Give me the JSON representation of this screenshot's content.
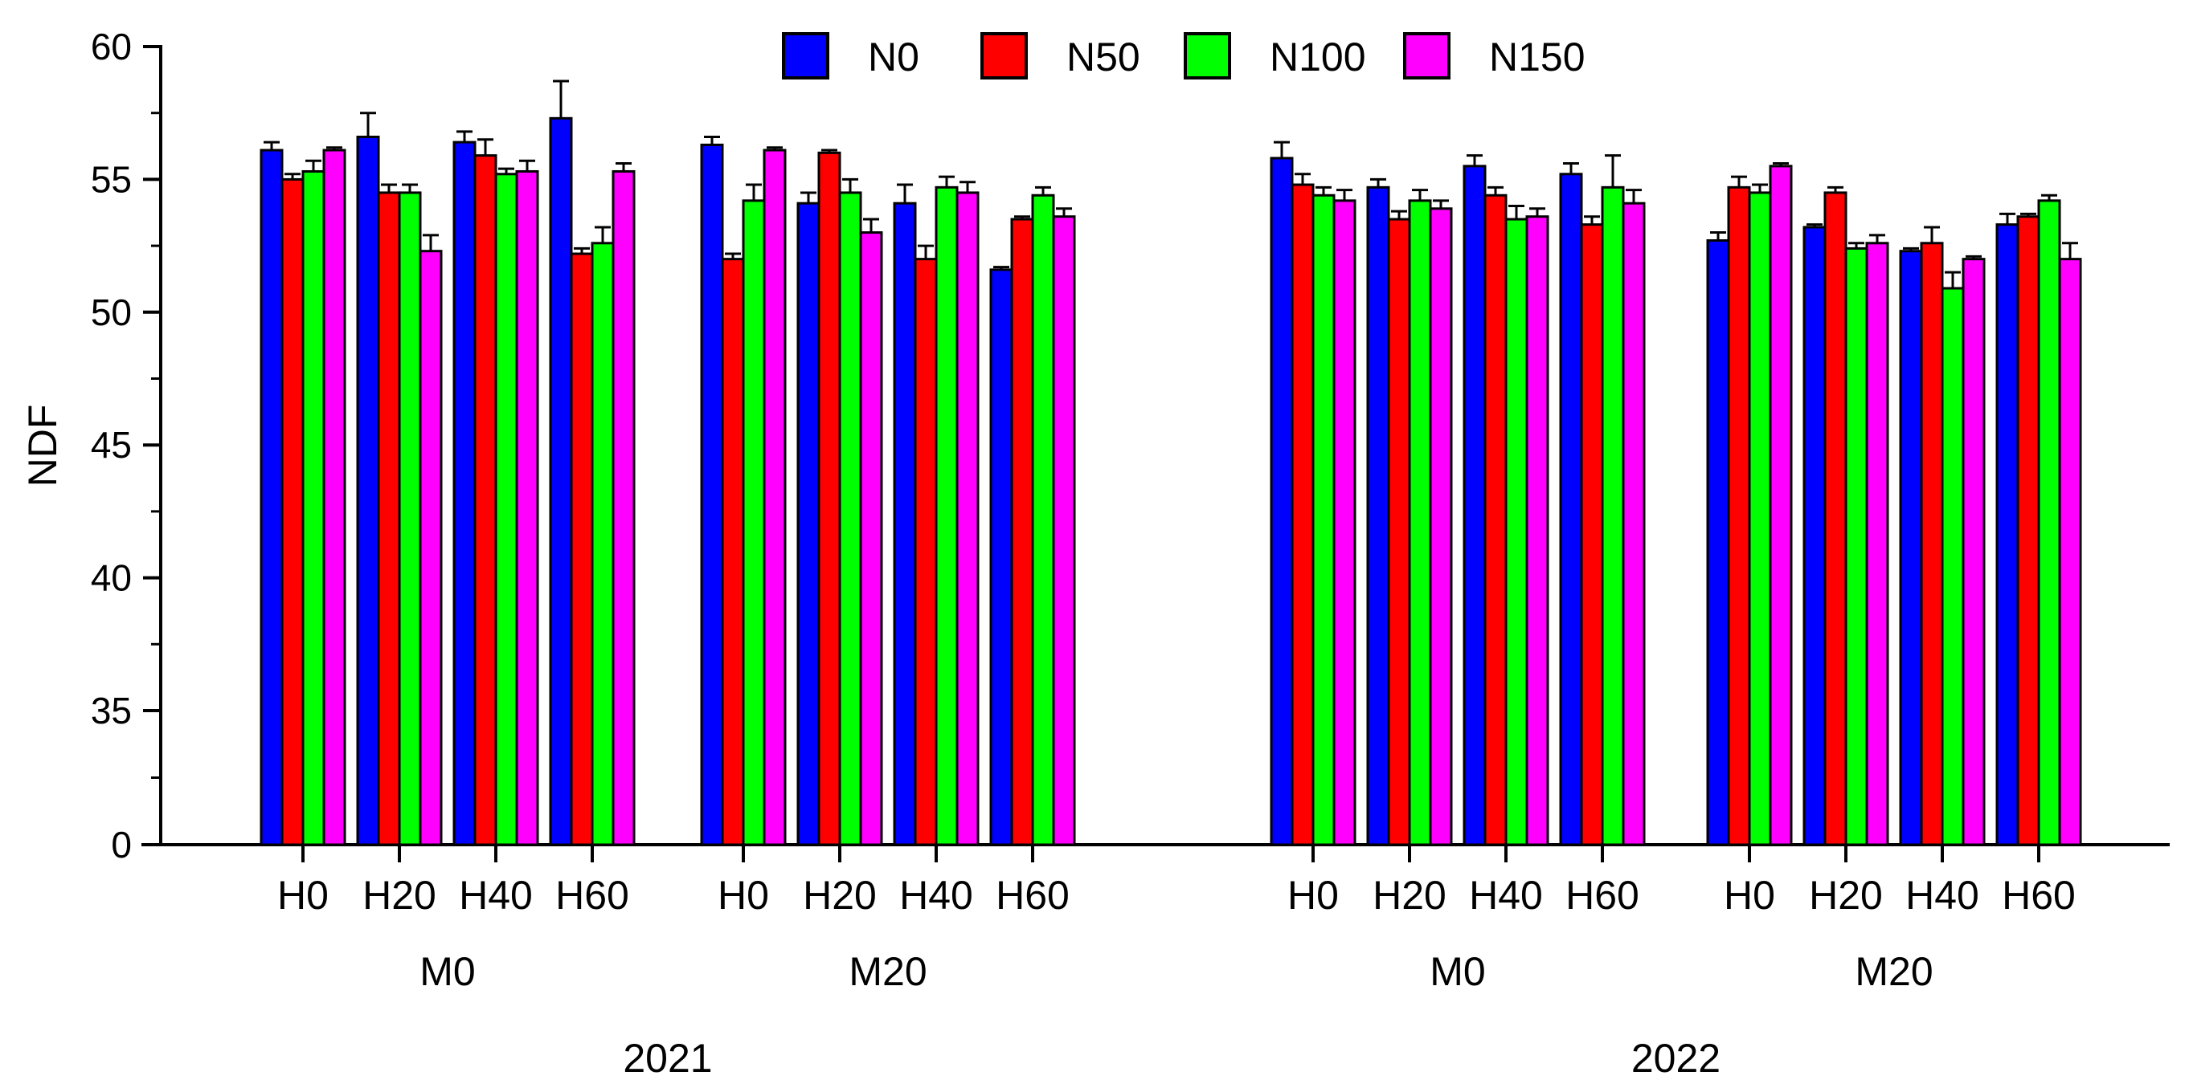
{
  "chart_data": {
    "type": "bar",
    "ylabel": "NDF",
    "y_axis_break": true,
    "y_ticks": [
      0,
      35,
      40,
      45,
      50,
      55,
      60
    ],
    "y_tick_labels": [
      "0",
      "35",
      "40",
      "45",
      "50",
      "55",
      "60"
    ],
    "ylim": [
      32,
      60
    ],
    "grid": false,
    "legend_position": "top-center",
    "legend": [
      "N0",
      "N50",
      "N100",
      "N150"
    ],
    "series": [
      {
        "name": "N0",
        "color": "#0000FF"
      },
      {
        "name": "N50",
        "color": "#FF0000"
      },
      {
        "name": "N100",
        "color": "#00FF00"
      },
      {
        "name": "N150",
        "color": "#FF00FF"
      }
    ],
    "years": [
      {
        "label": "2021",
        "groups": [
          {
            "label": "M0",
            "clusters": [
              {
                "label": "H0",
                "values": [
                  56.1,
                  55.0,
                  55.3,
                  56.1
                ],
                "errors": [
                  0.3,
                  0.2,
                  0.4,
                  0.1
                ]
              },
              {
                "label": "H20",
                "values": [
                  56.6,
                  54.5,
                  54.5,
                  52.3
                ],
                "errors": [
                  0.9,
                  0.3,
                  0.3,
                  0.6
                ]
              },
              {
                "label": "H40",
                "values": [
                  56.4,
                  55.9,
                  55.2,
                  55.3
                ],
                "errors": [
                  0.4,
                  0.6,
                  0.2,
                  0.4
                ]
              },
              {
                "label": "H60",
                "values": [
                  57.3,
                  52.2,
                  52.6,
                  55.3
                ],
                "errors": [
                  1.4,
                  0.2,
                  0.6,
                  0.3
                ]
              }
            ]
          },
          {
            "label": "M20",
            "clusters": [
              {
                "label": "H0",
                "values": [
                  56.3,
                  52.0,
                  54.2,
                  56.1
                ],
                "errors": [
                  0.3,
                  0.2,
                  0.6,
                  0.1
                ]
              },
              {
                "label": "H20",
                "values": [
                  54.1,
                  56.0,
                  54.5,
                  53.0
                ],
                "errors": [
                  0.4,
                  0.1,
                  0.5,
                  0.5
                ]
              },
              {
                "label": "H40",
                "values": [
                  54.1,
                  52.0,
                  54.7,
                  54.5
                ],
                "errors": [
                  0.7,
                  0.5,
                  0.4,
                  0.4
                ]
              },
              {
                "label": "H60",
                "values": [
                  51.6,
                  53.5,
                  54.4,
                  53.6
                ],
                "errors": [
                  0.1,
                  0.1,
                  0.3,
                  0.3
                ]
              }
            ]
          }
        ]
      },
      {
        "label": "2022",
        "groups": [
          {
            "label": "M0",
            "clusters": [
              {
                "label": "H0",
                "values": [
                  55.8,
                  54.8,
                  54.4,
                  54.2
                ],
                "errors": [
                  0.6,
                  0.4,
                  0.3,
                  0.4
                ]
              },
              {
                "label": "H20",
                "values": [
                  54.7,
                  53.5,
                  54.2,
                  53.9
                ],
                "errors": [
                  0.3,
                  0.3,
                  0.4,
                  0.3
                ]
              },
              {
                "label": "H40",
                "values": [
                  55.5,
                  54.4,
                  53.5,
                  53.6
                ],
                "errors": [
                  0.4,
                  0.3,
                  0.5,
                  0.3
                ]
              },
              {
                "label": "H60",
                "values": [
                  55.2,
                  53.3,
                  54.7,
                  54.1
                ],
                "errors": [
                  0.4,
                  0.3,
                  1.2,
                  0.5
                ]
              }
            ]
          },
          {
            "label": "M20",
            "clusters": [
              {
                "label": "H0",
                "values": [
                  52.7,
                  54.7,
                  54.5,
                  55.5
                ],
                "errors": [
                  0.3,
                  0.4,
                  0.3,
                  0.1
                ]
              },
              {
                "label": "H20",
                "values": [
                  53.2,
                  54.5,
                  52.4,
                  52.6
                ],
                "errors": [
                  0.1,
                  0.2,
                  0.2,
                  0.3
                ]
              },
              {
                "label": "H40",
                "values": [
                  52.3,
                  52.6,
                  50.9,
                  52.0
                ],
                "errors": [
                  0.1,
                  0.6,
                  0.6,
                  0.1
                ]
              },
              {
                "label": "H60",
                "values": [
                  53.3,
                  53.6,
                  54.2,
                  52.0
                ],
                "errors": [
                  0.4,
                  0.1,
                  0.2,
                  0.6
                ]
              }
            ]
          }
        ]
      }
    ]
  }
}
